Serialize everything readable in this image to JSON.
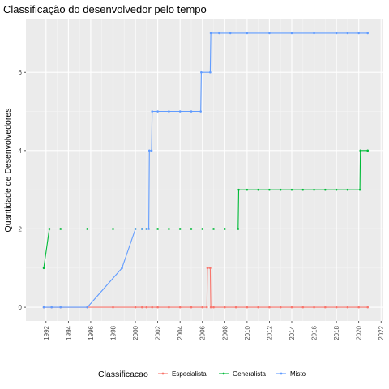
{
  "chart_data": {
    "type": "line",
    "title": "Classificação do desenvolvedor pelo tempo",
    "xlabel": "",
    "ylabel": "Quantidade de Desenvolvedores",
    "xlim": [
      1990.2,
      2022.2
    ],
    "ylim": [
      -0.35,
      7.35
    ],
    "x_ticks": [
      "1992",
      "1994",
      "1996",
      "1998",
      "2000",
      "2002",
      "2004",
      "2006",
      "2008",
      "2010",
      "2012",
      "2014",
      "2016",
      "2018",
      "2020",
      "2022"
    ],
    "y_ticks": [
      0,
      2,
      4,
      6
    ],
    "grid": true,
    "legend": {
      "title": "Classificacao",
      "position": "bottom"
    },
    "series": [
      {
        "name": "Especialista",
        "color": "#F8766D",
        "x": [
          1991.8,
          1992.5,
          1993.3,
          1995.7,
          1998.0,
          2000.0,
          2000.6,
          2001.0,
          2001.5,
          2002.0,
          2003.0,
          2004.0,
          2005.0,
          2006.0,
          2006.4,
          2006.45,
          2006.7,
          2006.75,
          2007.0,
          2008.0,
          2009.0,
          2010.0,
          2011.0,
          2012.0,
          2013.0,
          2014.0,
          2015.0,
          2016.0,
          2017.0,
          2018.0,
          2019.0,
          2020.0,
          2020.8
        ],
        "y": [
          0,
          0,
          0,
          0,
          0,
          0,
          0,
          0,
          0,
          0,
          0,
          0,
          0,
          0,
          0,
          1,
          1,
          0,
          0,
          0,
          0,
          0,
          0,
          0,
          0,
          0,
          0,
          0,
          0,
          0,
          0,
          0,
          0
        ]
      },
      {
        "name": "Generalista",
        "color": "#00BA38",
        "x": [
          1991.8,
          1992.3,
          1993.3,
          1995.7,
          1998.0,
          2000.0,
          2000.6,
          2001.0,
          2002.0,
          2003.0,
          2004.0,
          2005.0,
          2006.0,
          2007.0,
          2008.0,
          2009.2,
          2009.25,
          2010.0,
          2011.0,
          2012.0,
          2013.0,
          2014.0,
          2015.0,
          2016.0,
          2017.0,
          2018.0,
          2019.0,
          2020.1,
          2020.15,
          2020.8
        ],
        "y": [
          1,
          2,
          2,
          2,
          2,
          2,
          2,
          2,
          2,
          2,
          2,
          2,
          2,
          2,
          2,
          2,
          3,
          3,
          3,
          3,
          3,
          3,
          3,
          3,
          3,
          3,
          3,
          3,
          4,
          4
        ]
      },
      {
        "name": "Misto",
        "color": "#619CFF",
        "x": [
          1991.8,
          1992.5,
          1993.3,
          1995.7,
          1998.8,
          2000.0,
          2000.6,
          2001.0,
          2001.2,
          2001.25,
          2001.45,
          2001.5,
          2002.0,
          2003.0,
          2004.0,
          2005.0,
          2005.85,
          2005.9,
          2006.7,
          2006.75,
          2007.5,
          2008.5,
          2010.0,
          2012.0,
          2014.0,
          2016.0,
          2018.0,
          2019.0,
          2020.0,
          2020.8
        ],
        "y": [
          0,
          0,
          0,
          0,
          1,
          2,
          2,
          2,
          2,
          4,
          4,
          5,
          5,
          5,
          5,
          5,
          5,
          6,
          6,
          7,
          7,
          7,
          7,
          7,
          7,
          7,
          7,
          7,
          7,
          7
        ]
      }
    ]
  }
}
